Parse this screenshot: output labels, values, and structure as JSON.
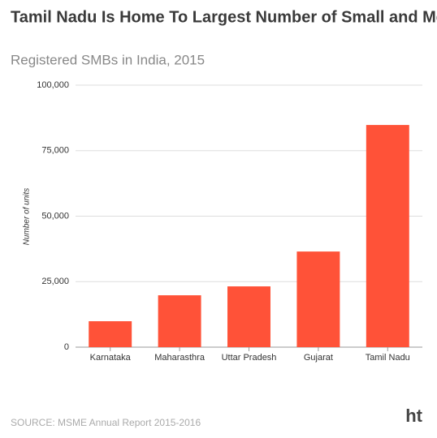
{
  "chart_data": {
    "type": "bar",
    "title": "Tamil Nadu Is Home To Largest Number of Small and Medium Businesses in India",
    "subtitle": "Registered SMBs in India, 2015",
    "y_label": "Number of units",
    "categories": [
      "Karnataka",
      "Maharasthra",
      "Uttar Pradesh",
      "Gujarat",
      "Tamil Nadu"
    ],
    "values": [
      9900,
      19800,
      23200,
      36500,
      84800
    ],
    "color": "#ff5238",
    "ylim": [
      0,
      100000
    ],
    "yticks": [
      0,
      {
        "value": 25000,
        "label": "25,000"
      },
      {
        "value": 50000,
        "label": "50,000"
      },
      {
        "value": 75000,
        "label": "75,000"
      },
      {
        "value": 100000,
        "label": "100,000"
      }
    ],
    "grid": true,
    "source": "SOURCE: MSME Annual Report 2015-2016",
    "logo": "ht"
  }
}
